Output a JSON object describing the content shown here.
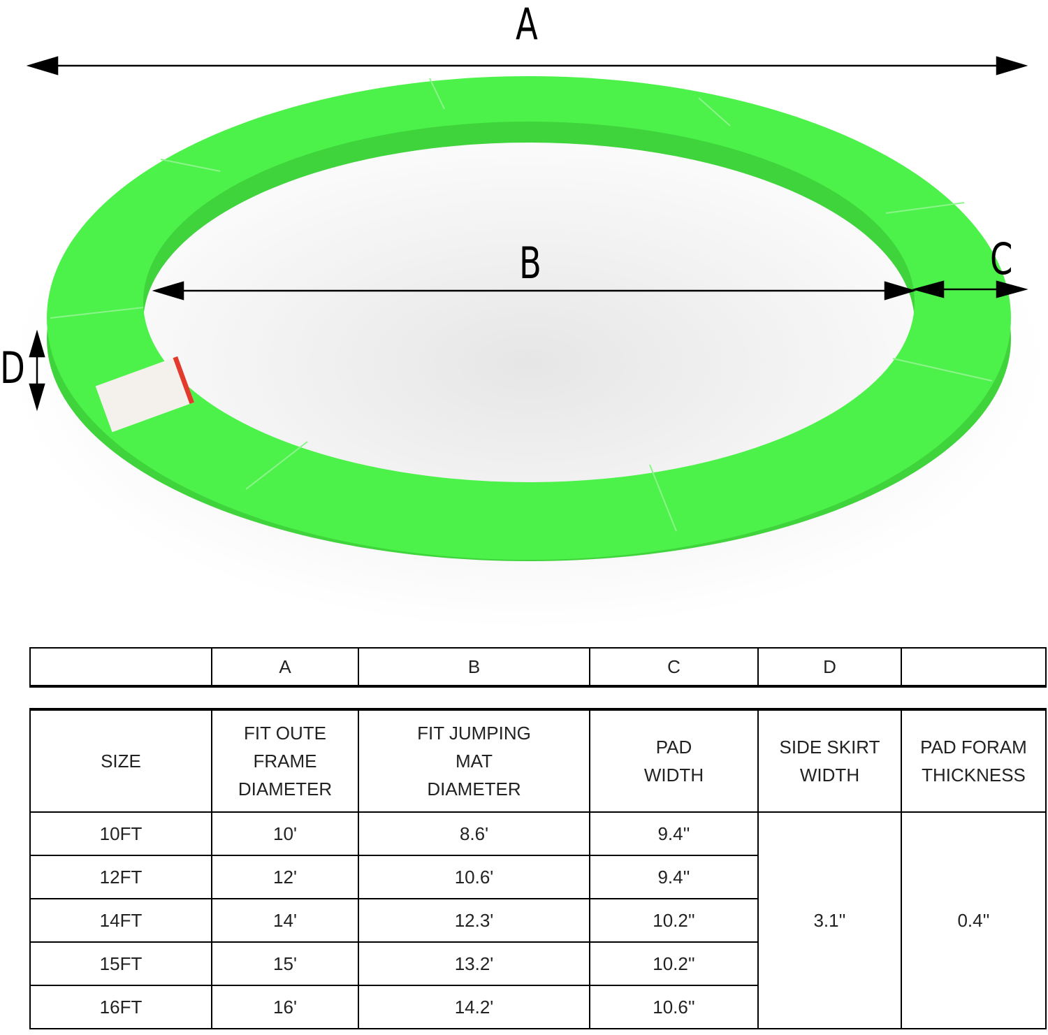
{
  "diagram": {
    "labels": {
      "a": "A",
      "b": "B",
      "c": "C",
      "d": "D"
    },
    "pad_color": "#4cf24a",
    "pad_side_color": "#3fd43c"
  },
  "key_row": [
    "",
    "A",
    "B",
    "C",
    "D",
    ""
  ],
  "table": {
    "headers": [
      "SIZE",
      "FIT OUTE FRAME DIAMETER",
      "FIT JUMPING MAT DIAMETER",
      "PAD WIDTH",
      "SIDE SKIRT WIDTH",
      "PAD FORAM THICKNESS"
    ],
    "rows": [
      {
        "size": "10FT",
        "a": "10'",
        "b": "8.6'",
        "c": "9.4''"
      },
      {
        "size": "12FT",
        "a": "12'",
        "b": "10.6'",
        "c": "9.4''"
      },
      {
        "size": "14FT",
        "a": "14'",
        "b": "12.3'",
        "c": "10.2''"
      },
      {
        "size": "15FT",
        "a": "15'",
        "b": "13.2'",
        "c": "10.2''"
      },
      {
        "size": "16FT",
        "a": "16'",
        "b": "14.2'",
        "c": "10.6''"
      }
    ],
    "side_skirt_width": "3.1''",
    "pad_foam_thickness": "0.4''"
  }
}
